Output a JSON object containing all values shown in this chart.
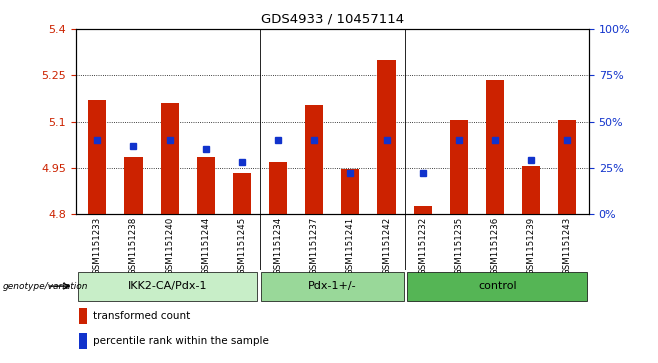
{
  "title": "GDS4933 / 10457114",
  "samples": [
    "GSM1151233",
    "GSM1151238",
    "GSM1151240",
    "GSM1151244",
    "GSM1151245",
    "GSM1151234",
    "GSM1151237",
    "GSM1151241",
    "GSM1151242",
    "GSM1151232",
    "GSM1151235",
    "GSM1151236",
    "GSM1151239",
    "GSM1151243"
  ],
  "bar_values": [
    5.17,
    4.985,
    5.16,
    4.985,
    4.935,
    4.97,
    5.155,
    4.945,
    5.3,
    4.825,
    5.105,
    5.235,
    4.955,
    5.105
  ],
  "percentile_values": [
    40,
    37,
    40,
    35,
    28,
    40,
    40,
    22,
    40,
    22,
    40,
    40,
    29,
    40
  ],
  "groups": [
    {
      "label": "IKK2-CA/Pdx-1",
      "start": 0,
      "end": 5
    },
    {
      "label": "Pdx-1+/-",
      "start": 5,
      "end": 9
    },
    {
      "label": "control",
      "start": 9,
      "end": 14
    }
  ],
  "group_colors": [
    "#c8eec8",
    "#99d899",
    "#55b555"
  ],
  "y_min": 4.8,
  "y_max": 5.4,
  "y_ticks_left": [
    4.8,
    4.95,
    5.1,
    5.25,
    5.4
  ],
  "y_ticks_right": [
    0,
    25,
    50,
    75,
    100
  ],
  "bar_color": "#cc2200",
  "blue_color": "#1133cc",
  "bg_color": "#d8d8d8",
  "legend_red": "transformed count",
  "legend_blue": "percentile rank within the sample",
  "genotype_label": "genotype/variation"
}
